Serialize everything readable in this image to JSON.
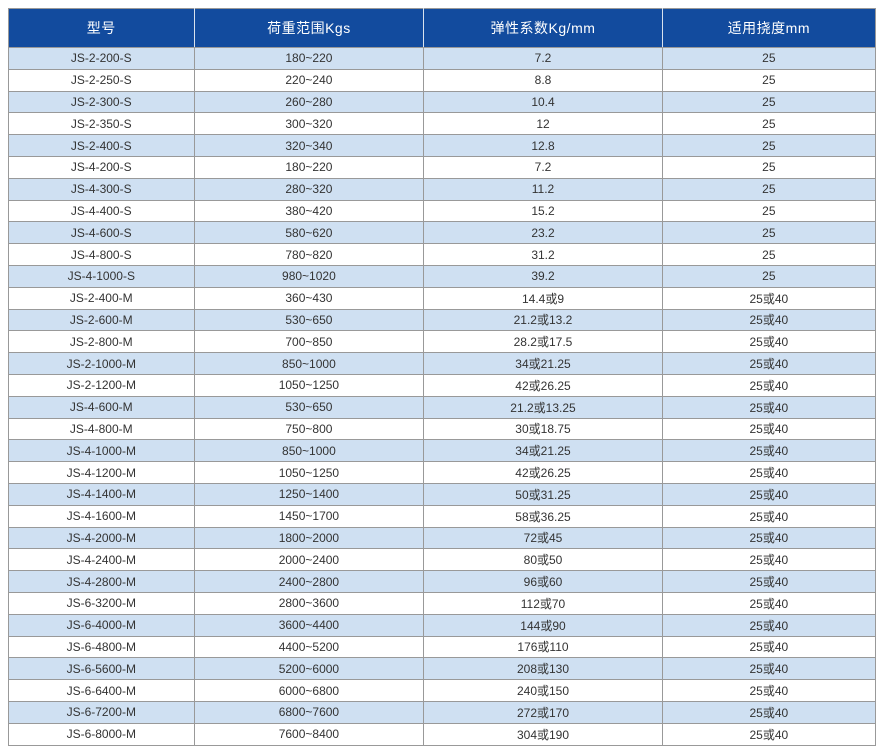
{
  "colors": {
    "header_bg": "#124b9e",
    "header_text": "#ffffff",
    "row_alt_bg": "#cfe0f2",
    "row_bg": "#ffffff",
    "border": "#999999",
    "body_text": "#333333"
  },
  "table": {
    "columns": [
      "型号",
      "荷重范围Kgs",
      "弹性系数Kg/mm",
      "适用挠度mm"
    ],
    "rows": [
      [
        "JS-2-200-S",
        "180~220",
        "7.2",
        "25"
      ],
      [
        "JS-2-250-S",
        "220~240",
        "8.8",
        "25"
      ],
      [
        "JS-2-300-S",
        "260~280",
        "10.4",
        "25"
      ],
      [
        "JS-2-350-S",
        "300~320",
        "12",
        "25"
      ],
      [
        "JS-2-400-S",
        "320~340",
        "12.8",
        "25"
      ],
      [
        "JS-4-200-S",
        "180~220",
        "7.2",
        "25"
      ],
      [
        "JS-4-300-S",
        "280~320",
        "11.2",
        "25"
      ],
      [
        "JS-4-400-S",
        "380~420",
        "15.2",
        "25"
      ],
      [
        "JS-4-600-S",
        "580~620",
        "23.2",
        "25"
      ],
      [
        "JS-4-800-S",
        "780~820",
        "31.2",
        "25"
      ],
      [
        "JS-4-1000-S",
        "980~1020",
        "39.2",
        "25"
      ],
      [
        "JS-2-400-M",
        "360~430",
        "14.4或9",
        "25或40"
      ],
      [
        "JS-2-600-M",
        "530~650",
        "21.2或13.2",
        "25或40"
      ],
      [
        "JS-2-800-M",
        "700~850",
        "28.2或17.5",
        "25或40"
      ],
      [
        "JS-2-1000-M",
        "850~1000",
        "34或21.25",
        "25或40"
      ],
      [
        "JS-2-1200-M",
        "1050~1250",
        "42或26.25",
        "25或40"
      ],
      [
        "JS-4-600-M",
        "530~650",
        "21.2或13.25",
        "25或40"
      ],
      [
        "JS-4-800-M",
        "750~800",
        "30或18.75",
        "25或40"
      ],
      [
        "JS-4-1000-M",
        "850~1000",
        "34或21.25",
        "25或40"
      ],
      [
        "JS-4-1200-M",
        "1050~1250",
        "42或26.25",
        "25或40"
      ],
      [
        "JS-4-1400-M",
        "1250~1400",
        "50或31.25",
        "25或40"
      ],
      [
        "JS-4-1600-M",
        "1450~1700",
        "58或36.25",
        "25或40"
      ],
      [
        "JS-4-2000-M",
        "1800~2000",
        "72或45",
        "25或40"
      ],
      [
        "JS-4-2400-M",
        "2000~2400",
        "80或50",
        "25或40"
      ],
      [
        "JS-4-2800-M",
        "2400~2800",
        "96或60",
        "25或40"
      ],
      [
        "JS-6-3200-M",
        "2800~3600",
        "112或70",
        "25或40"
      ],
      [
        "JS-6-4000-M",
        "3600~4400",
        "144或90",
        "25或40"
      ],
      [
        "JS-6-4800-M",
        "4400~5200",
        "176或110",
        "25或40"
      ],
      [
        "JS-6-5600-M",
        "5200~6000",
        "208或130",
        "25或40"
      ],
      [
        "JS-6-6400-M",
        "6000~6800",
        "240或150",
        "25或40"
      ],
      [
        "JS-6-7200-M",
        "6800~7600",
        "272或170",
        "25或40"
      ],
      [
        "JS-6-8000-M",
        "7600~8400",
        "304或190",
        "25或40"
      ]
    ]
  }
}
